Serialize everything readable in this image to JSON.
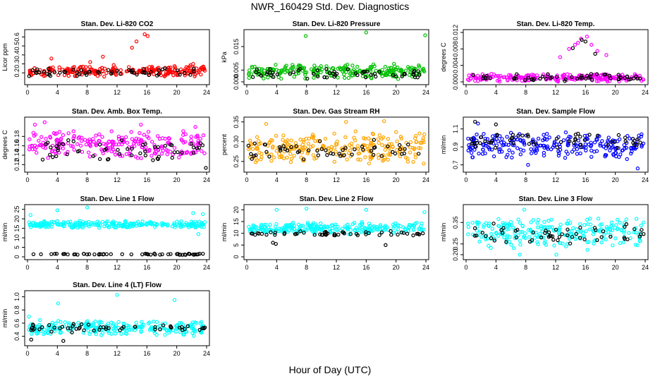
{
  "title": "NWR_160429  Std. Dev. Diagnostics",
  "x_axis_title": "Hour of Day (UTC)",
  "chart_data": [
    {
      "type": "scatter",
      "title": "Stan. Dev. Li-820 CO2",
      "ylabel": "Licor ppm",
      "xlim": [
        0,
        24
      ],
      "ylim": [
        0.1,
        0.65
      ],
      "xticks": [
        "0",
        "4",
        "8",
        "12",
        "16",
        "20",
        "24"
      ],
      "yticks": [
        "0.2",
        "0.3",
        "0.4",
        "0.5",
        "0.6"
      ],
      "series": [
        {
          "color": "#ff0000",
          "band": [
            0.15,
            0.29
          ],
          "x": [
            14.6,
            15.7,
            16.1,
            14.0,
            3.2,
            10.1,
            8.4,
            22.2
          ],
          "y": [
            0.55,
            0.63,
            0.61,
            0.48,
            0.36,
            0.38,
            0.32,
            0.3
          ]
        },
        {
          "color": "#000000",
          "band": [
            0.16,
            0.26
          ],
          "x": [],
          "y": []
        }
      ]
    },
    {
      "type": "scatter",
      "title": "Stan. Dev. Li-820 Pressure",
      "ylabel": "kPa",
      "xlim": [
        0,
        24
      ],
      "ylim": [
        0,
        0.021
      ],
      "xticks": [
        "0",
        "4",
        "8",
        "12",
        "16",
        "20",
        "24"
      ],
      "yticks": [
        "0.000",
        "0.005",
        "0.015"
      ],
      "series": [
        {
          "color": "#00c000",
          "band": [
            0.001,
            0.008
          ],
          "x": [
            7.9,
            16.0,
            23.9
          ],
          "y": [
            0.0195,
            0.021,
            0.0198
          ]
        },
        {
          "color": "#000000",
          "band": [
            0.001,
            0.006
          ],
          "x": [],
          "y": []
        }
      ]
    },
    {
      "type": "scatter",
      "title": "Stan. Dev. Li-820 Temp.",
      "ylabel": "degrees C",
      "xlim": [
        0,
        24
      ],
      "ylim": [
        0,
        0.012
      ],
      "xticks": [
        "0",
        "4",
        "8",
        "12",
        "16",
        "20",
        "24"
      ],
      "yticks": [
        "0.000",
        "0.004",
        "0.008",
        "0.012"
      ],
      "series": [
        {
          "color": "#ff00ff",
          "band": [
            0,
            0.002
          ],
          "x": [
            13.8,
            14.6,
            15.4,
            16.2,
            16.8,
            15.0,
            17.6,
            18.8,
            12.6
          ],
          "y": [
            0.008,
            0.009,
            0.0105,
            0.011,
            0.009,
            0.0095,
            0.0075,
            0.0065,
            0.006
          ]
        },
        {
          "color": "#000000",
          "band": [
            0,
            0.002
          ],
          "x": [
            15.5,
            16.0,
            14.3,
            17.3
          ],
          "y": [
            0.0102,
            0.0098,
            0.0082,
            0.0068
          ]
        }
      ]
    },
    {
      "type": "scatter",
      "title": "Stan. Dev. Amb. Box Temp.",
      "ylabel": "degrees C",
      "xlim": [
        0,
        24
      ],
      "ylim": [
        0.11,
        0.215
      ],
      "xticks": [
        "0",
        "4",
        "8",
        "12",
        "16",
        "20",
        "24"
      ],
      "yticks": [
        "0.12",
        "0.14",
        "0.16",
        "0.18"
      ],
      "series": [
        {
          "color": "#ff00ff",
          "band": [
            0.13,
            0.195
          ],
          "x": [
            1.0,
            2.3,
            15.2,
            22.5
          ],
          "y": [
            0.205,
            0.21,
            0.205,
            0.2
          ]
        },
        {
          "color": "#000000",
          "band": [
            0.125,
            0.175
          ],
          "x": [
            23.9
          ],
          "y": [
            0.113
          ]
        }
      ]
    },
    {
      "type": "scatter",
      "title": "Stan. Dev. Gas Stream RH",
      "ylabel": "percent",
      "xlim": [
        0,
        24
      ],
      "ylim": [
        0.23,
        0.355
      ],
      "xticks": [
        "0",
        "4",
        "8",
        "12",
        "16",
        "20",
        "24"
      ],
      "yticks": [
        "0.25",
        "0.30",
        "0.35"
      ],
      "series": [
        {
          "color": "#ffa500",
          "band": [
            0.24,
            0.33
          ],
          "x": [
            2.6,
            13.3,
            18.4
          ],
          "y": [
            0.345,
            0.35,
            0.352
          ]
        },
        {
          "color": "#000000",
          "band": [
            0.25,
            0.31
          ],
          "x": [],
          "y": []
        }
      ]
    },
    {
      "type": "scatter",
      "title": "Stan. Dev. Sample Flow",
      "ylabel": "ml/min",
      "xlim": [
        0,
        24
      ],
      "ylim": [
        0.65,
        1.2
      ],
      "xticks": [
        "0",
        "4",
        "8",
        "12",
        "16",
        "20",
        "24"
      ],
      "yticks": [
        "0.7",
        "0.9",
        "1.1"
      ],
      "series": [
        {
          "color": "#0000ff",
          "band": [
            0.75,
            1.08
          ],
          "x": [
            23.0,
            1.6,
            8.3
          ],
          "y": [
            0.66,
            1.16,
            0.7
          ]
        },
        {
          "color": "#000000",
          "band": [
            0.85,
            1.08
          ],
          "x": [
            1.2,
            4.0
          ],
          "y": [
            1.18,
            1.15
          ]
        }
      ]
    },
    {
      "type": "scatter",
      "title": "Stan. Dev. Line 1 Flow",
      "ylabel": "ml/min",
      "xlim": [
        0,
        24
      ],
      "ylim": [
        0,
        26
      ],
      "xticks": [
        "0",
        "4",
        "8",
        "12",
        "16",
        "20",
        "24"
      ],
      "yticks": [
        "0",
        "5",
        "10",
        "15",
        "20",
        "25"
      ],
      "series": [
        {
          "color": "#00ffff",
          "band": [
            15,
            19
          ],
          "x": [
            0.4,
            4.0,
            8.0,
            22.2,
            23.5,
            22.9
          ],
          "y": [
            22,
            24.5,
            26,
            23,
            22.5,
            12
          ]
        },
        {
          "color": "#000000",
          "band": [
            1.0,
            1.8
          ],
          "x": [],
          "y": []
        }
      ]
    },
    {
      "type": "scatter",
      "title": "Stan. Dev. Line 2 Flow",
      "ylabel": "ml/min",
      "xlim": [
        0,
        24
      ],
      "ylim": [
        0,
        21
      ],
      "xticks": [
        "0",
        "4",
        "8",
        "12",
        "16",
        "20",
        "24"
      ],
      "yticks": [
        "0",
        "5",
        "10",
        "15",
        "20"
      ],
      "series": [
        {
          "color": "#00ffff",
          "band": [
            9.5,
            15
          ],
          "x": [
            4.0,
            8.0,
            16.0,
            23.8
          ],
          "y": [
            20,
            20.5,
            20,
            19
          ]
        },
        {
          "color": "#000000",
          "band": [
            8.5,
            11
          ],
          "x": [
            3.5,
            3.9,
            18.6
          ],
          "y": [
            6,
            5.5,
            5.0
          ]
        }
      ]
    },
    {
      "type": "scatter",
      "title": "Stan. Dev. Line 3 Flow",
      "ylabel": "ml/min",
      "xlim": [
        0,
        24
      ],
      "ylim": [
        0.19,
        0.42
      ],
      "xticks": [
        "0",
        "4",
        "8",
        "12",
        "16",
        "20",
        "24"
      ],
      "yticks": [
        "0.20",
        "0.25",
        "0.35"
      ],
      "series": [
        {
          "color": "#00ffff",
          "band": [
            0.22,
            0.38
          ],
          "x": [
            7.8,
            7.2,
            12.1
          ],
          "y": [
            0.41,
            0.2,
            0.2
          ]
        },
        {
          "color": "#000000",
          "band": [
            0.25,
            0.35
          ],
          "x": [],
          "y": []
        }
      ]
    },
    {
      "type": "scatter",
      "title": "Stan. Dev. Line 4 (LT) Flow",
      "ylabel": "ml/min",
      "xlim": [
        0,
        24
      ],
      "ylim": [
        0.3,
        1.05
      ],
      "xticks": [
        "0",
        "4",
        "8",
        "12",
        "16",
        "20",
        "24"
      ],
      "yticks": [
        "0.4",
        "0.6",
        "0.8",
        "1.0"
      ],
      "series": [
        {
          "color": "#00ffff",
          "band": [
            0.4,
            0.65
          ],
          "x": [
            4.1,
            12.0,
            19.7,
            0.2
          ],
          "y": [
            0.9,
            1.03,
            0.95,
            0.7
          ]
        },
        {
          "color": "#000000",
          "band": [
            0.45,
            0.6
          ],
          "x": [
            0.5,
            4.8
          ],
          "y": [
            0.35,
            0.33
          ]
        }
      ]
    }
  ]
}
